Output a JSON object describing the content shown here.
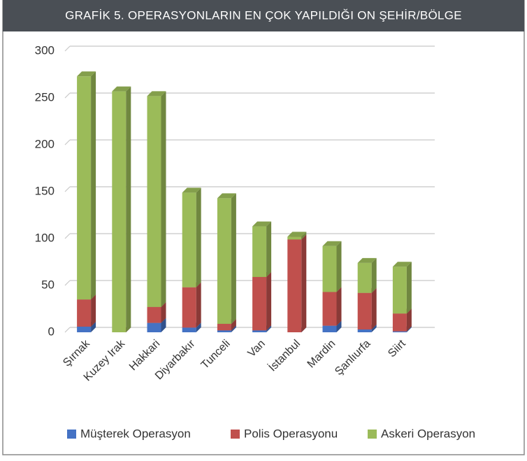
{
  "chart_data": {
    "type": "bar",
    "stacked": true,
    "title": "GRAFİK 5. OPERASYONLARIN EN ÇOK YAPILDIĞI ON ŞEHİR/BÖLGE",
    "categories": [
      "Şırnak",
      "Kuzey Irak",
      "Hakkari",
      "Diyarbakır",
      "Tunceli",
      "Van",
      "İstanbul",
      "Mardin",
      "Şanlıurfa",
      "Siirt"
    ],
    "series": [
      {
        "name": "Müşterek Operasyon",
        "color": "#4472c4",
        "values": [
          6,
          0,
          10,
          5,
          2,
          2,
          0,
          7,
          3,
          1
        ]
      },
      {
        "name": "Polis Operasyonu",
        "color": "#c0504d",
        "values": [
          29,
          0,
          17,
          43,
          7,
          57,
          99,
          36,
          39,
          19
        ]
      },
      {
        "name": "Askeri Operasyon",
        "color": "#9bbb59",
        "values": [
          238,
          257,
          225,
          101,
          134,
          54,
          3,
          49,
          32,
          50
        ]
      }
    ],
    "ylim": [
      0,
      300
    ],
    "yticks": [
      0,
      50,
      100,
      150,
      200,
      250,
      300
    ],
    "grid": true
  }
}
